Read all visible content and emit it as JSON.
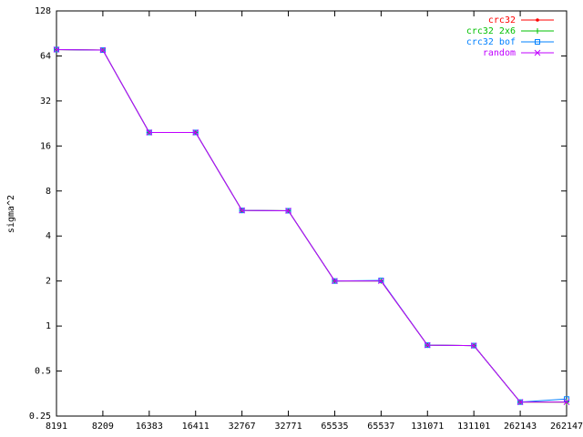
{
  "chart_data": {
    "type": "line",
    "ylabel": "sigma^2",
    "categories": [
      "8191",
      "8209",
      "16383",
      "16411",
      "32767",
      "32771",
      "65535",
      "65537",
      "131071",
      "131101",
      "262143",
      "262147"
    ],
    "series": [
      {
        "name": "crc32",
        "color": "#ff0000",
        "marker": "dot",
        "values": [
          70.6,
          70,
          19.7,
          19.7,
          5.93,
          5.9,
          2.0,
          2.0,
          0.745,
          0.74,
          0.31,
          0.31
        ]
      },
      {
        "name": "crc32 2x6",
        "color": "#00c000",
        "marker": "plus",
        "values": [
          70.6,
          70,
          19.7,
          19.7,
          5.93,
          5.9,
          2.0,
          2.0,
          0.745,
          0.74,
          0.31,
          0.31
        ]
      },
      {
        "name": "crc32 bof",
        "color": "#0080ff",
        "marker": "square",
        "values": [
          70.6,
          70,
          19.7,
          19.7,
          5.93,
          5.9,
          2.0,
          2.02,
          0.745,
          0.74,
          0.31,
          0.325
        ]
      },
      {
        "name": "random",
        "color": "#c000ff",
        "marker": "cross",
        "values": [
          70.6,
          70,
          19.7,
          19.7,
          5.93,
          5.9,
          2.0,
          2.0,
          0.745,
          0.74,
          0.31,
          0.31
        ]
      }
    ],
    "ylim": [
      0.25,
      128
    ],
    "yticks": [
      0.25,
      0.5,
      1,
      2,
      4,
      8,
      16,
      32,
      64,
      128
    ],
    "logy": true,
    "legend": "upper right"
  }
}
